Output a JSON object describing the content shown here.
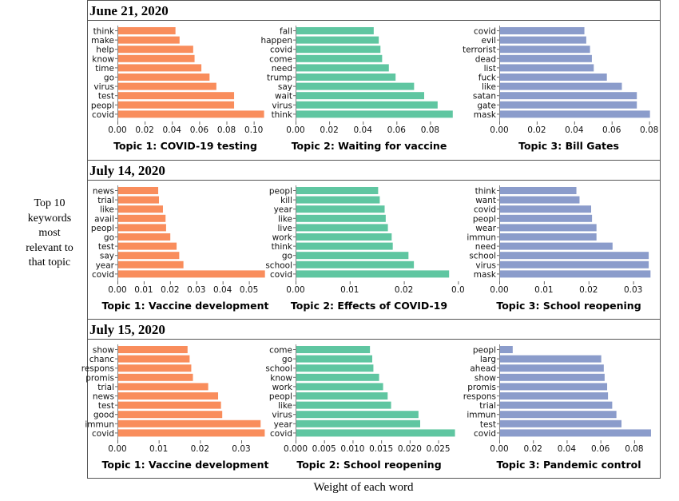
{
  "side_label": [
    "Top 10",
    "keywords",
    "most",
    "relevant to",
    "that topic"
  ],
  "x_title": "Weight of each word",
  "colors": {
    "topic1": "#F98D5C",
    "topic2": "#5FC6A1",
    "topic3": "#8B9CCB"
  },
  "chart_data": [
    {
      "date": "June 21, 2020",
      "panels": [
        {
          "type": "bar",
          "orientation": "horizontal",
          "title": "Topic 1: COVID-19 testing",
          "categories": [
            "think",
            "make",
            "help",
            "know",
            "time",
            "go",
            "virus",
            "test",
            "peopl",
            "covid"
          ],
          "values": [
            0.042,
            0.045,
            0.055,
            0.056,
            0.061,
            0.067,
            0.072,
            0.085,
            0.085,
            0.107
          ],
          "ticks": [
            "0.00",
            "0.02",
            "0.04",
            "0.06",
            "0.08",
            "0.10"
          ],
          "xlim": [
            0,
            0.109
          ]
        },
        {
          "type": "bar",
          "orientation": "horizontal",
          "title": "Topic 2: Waiting for vaccine",
          "categories": [
            "fall",
            "happen",
            "covid",
            "come",
            "need",
            "trump",
            "say",
            "wait",
            "virus",
            "think"
          ],
          "values": [
            0.046,
            0.049,
            0.05,
            0.051,
            0.055,
            0.059,
            0.07,
            0.076,
            0.084,
            0.093
          ],
          "ticks": [
            "0.00",
            "0.02",
            "0.04",
            "0.06",
            "0.08"
          ],
          "xlim": [
            0,
            0.095
          ]
        },
        {
          "type": "bar",
          "orientation": "horizontal",
          "title": "Topic 3: Bill Gates",
          "categories": [
            "covid",
            "evil",
            "terrorist",
            "dead",
            "list",
            "fuck",
            "like",
            "satan",
            "gate",
            "mask"
          ],
          "values": [
            0.045,
            0.046,
            0.048,
            0.049,
            0.05,
            0.057,
            0.065,
            0.073,
            0.073,
            0.08
          ],
          "ticks": [
            "0.00",
            "0.02",
            "0.04",
            "0.06",
            "0.08"
          ],
          "xlim": [
            0,
            0.081
          ]
        }
      ]
    },
    {
      "date": "July 14, 2020",
      "panels": [
        {
          "type": "bar",
          "orientation": "horizontal",
          "title": "Topic 1: Vaccine development",
          "categories": [
            "news",
            "trial",
            "like",
            "avail",
            "peopl",
            "go",
            "test",
            "say",
            "year",
            "covid"
          ],
          "values": [
            0.0152,
            0.0155,
            0.017,
            0.018,
            0.0182,
            0.0198,
            0.0222,
            0.0232,
            0.0248,
            0.0558
          ],
          "ticks": [
            "0.00",
            "0.01",
            "0.02",
            "0.03",
            "0.04",
            "0.05"
          ],
          "xlim": [
            0,
            0.0565
          ]
        },
        {
          "type": "bar",
          "orientation": "horizontal",
          "title": "Topic 2: Effects of COVID-19",
          "categories": [
            "peopl",
            "kill",
            "year",
            "like",
            "live",
            "work",
            "think",
            "go",
            "school",
            "covid"
          ],
          "values": [
            0.0151,
            0.0154,
            0.0163,
            0.0165,
            0.0169,
            0.0176,
            0.0178,
            0.0207,
            0.0217,
            0.0282
          ],
          "ticks": [
            "0.00",
            "0.01",
            "0.02",
            "0.0"
          ],
          "xlim": [
            0,
            0.0295
          ]
        },
        {
          "type": "bar",
          "orientation": "horizontal",
          "title": "Topic 3: School reopening",
          "categories": [
            "think",
            "want",
            "covid",
            "peopl",
            "wear",
            "immun",
            "need",
            "school",
            "virus",
            "mask"
          ],
          "values": [
            0.0171,
            0.0178,
            0.0204,
            0.0206,
            0.0216,
            0.0216,
            0.0252,
            0.0333,
            0.0333,
            0.0337
          ],
          "ticks": [
            "0.00",
            "0.01",
            "0.02",
            "0.03"
          ],
          "xlim": [
            0,
            0.034
          ]
        }
      ]
    },
    {
      "date": "July 15, 2020",
      "panels": [
        {
          "type": "bar",
          "orientation": "horizontal",
          "title": "Topic 1: Vaccine development",
          "categories": [
            "show",
            "chanc",
            "respons",
            "promis",
            "trial",
            "news",
            "test",
            "good",
            "immun",
            "covid"
          ],
          "values": [
            0.0168,
            0.0173,
            0.0177,
            0.0181,
            0.0218,
            0.0242,
            0.0249,
            0.0252,
            0.0345,
            0.0355
          ],
          "ticks": [
            "0.00",
            "0.01",
            "0.02",
            "0.03"
          ],
          "xlim": [
            0,
            0.036
          ]
        },
        {
          "type": "bar",
          "orientation": "horizontal",
          "title": "Topic 2: School reopening",
          "categories": [
            "come",
            "go",
            "school",
            "know",
            "work",
            "peopl",
            "like",
            "virus",
            "year",
            "covid"
          ],
          "values": [
            0.0129,
            0.0133,
            0.0135,
            0.0145,
            0.0152,
            0.016,
            0.0166,
            0.0214,
            0.0217,
            0.0278
          ],
          "ticks": [
            "0.000",
            "0.005",
            "0.010",
            "0.015",
            "0.020",
            "0.025"
          ],
          "xlim": [
            0,
            0.028
          ]
        },
        {
          "type": "bar",
          "orientation": "horizontal",
          "title": "Topic 3: Pandemic control",
          "categories": [
            "peopl",
            "larg",
            "ahead",
            "show",
            "promis",
            "respons",
            "trial",
            "immun",
            "test",
            "covid"
          ],
          "values": [
            0.0075,
            0.06,
            0.0615,
            0.062,
            0.0635,
            0.064,
            0.0665,
            0.069,
            0.072,
            0.0895
          ],
          "ticks": [
            "0.00",
            "0.02",
            "0.04",
            "0.06",
            "0.08"
          ],
          "xlim": [
            0,
            0.09
          ]
        }
      ]
    }
  ]
}
